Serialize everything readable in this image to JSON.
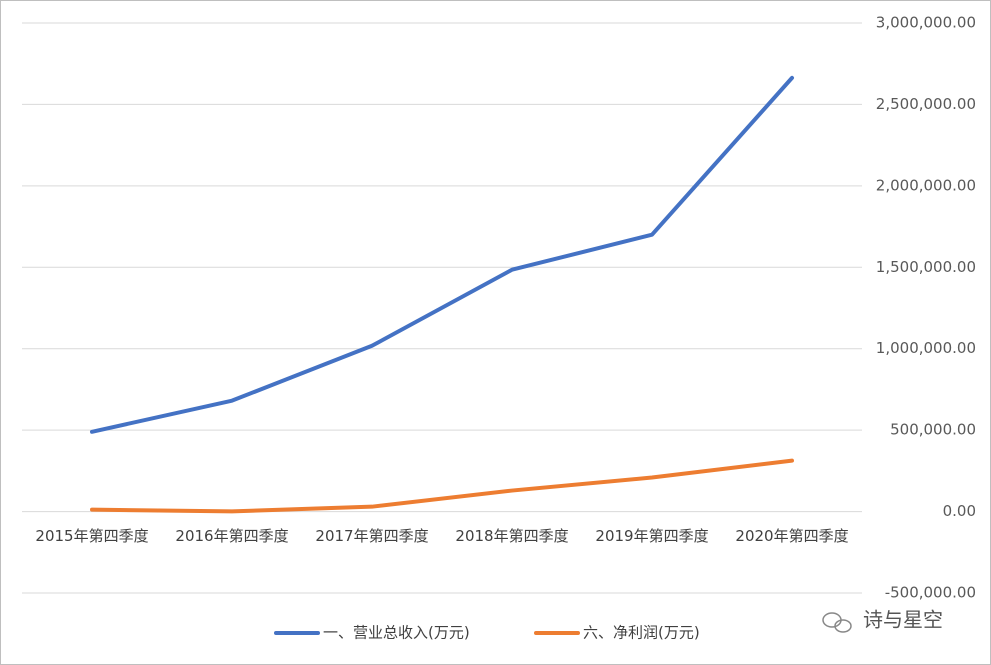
{
  "chart_data": {
    "type": "line",
    "categories": [
      "2015年第四季度",
      "2016年第四季度",
      "2017年第四季度",
      "2018年第四季度",
      "2019年第四季度",
      "2020年第四季度"
    ],
    "series": [
      {
        "name": "一、营业总收入(万元)",
        "color": "#4472c4",
        "values": [
          490000,
          681000,
          1018000,
          1485000,
          1700000,
          2663000
        ]
      },
      {
        "name": "六、净利润(万元)",
        "color": "#ed7d31",
        "values": [
          12000,
          1000,
          30000,
          129000,
          209000,
          313000
        ]
      }
    ],
    "ylim": [
      -500000,
      3000000
    ],
    "yticks": [
      {
        "value": -500000,
        "label": "-500,000.00"
      },
      {
        "value": 0,
        "label": "0.00"
      },
      {
        "value": 500000,
        "label": "500,000.00"
      },
      {
        "value": 1000000,
        "label": "1,000,000.00"
      },
      {
        "value": 1500000,
        "label": "1,500,000.00"
      },
      {
        "value": 2000000,
        "label": "2,000,000.00"
      },
      {
        "value": 2500000,
        "label": "2,500,000.00"
      },
      {
        "value": 3000000,
        "label": "3,000,000.00"
      }
    ],
    "grid": true,
    "legend": "bottom",
    "y_axis_side": "right",
    "watermark": "诗与星空"
  }
}
